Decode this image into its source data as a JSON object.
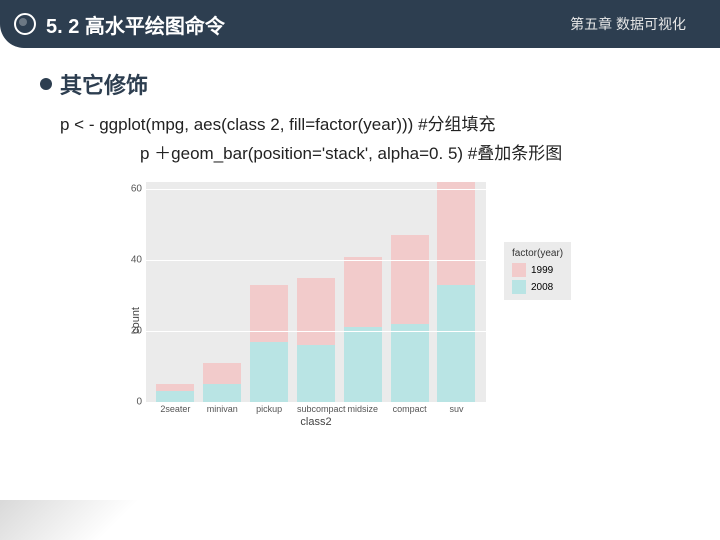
{
  "header": {
    "section": "5. 2 高水平绘图命令",
    "chapter": "第五章 数据可视化"
  },
  "bullet": "其它修饰",
  "code": {
    "line1": "p < - ggplot(mpg, aes(class 2, fill=factor(year)))   #分组填充",
    "line2": "p ＋geom_bar(position='stack', alpha=0. 5)   #叠加条形图"
  },
  "chart": {
    "type": "bar",
    "stack": true,
    "alpha": 0.55,
    "panel_bg": "#ebebeb",
    "grid_color": "#ffffff",
    "ylabel": "count",
    "xlabel": "class2",
    "ylim": [
      0,
      62
    ],
    "yticks": [
      0,
      20,
      40,
      60
    ],
    "categories": [
      "2seater",
      "minivan",
      "pickup",
      "subcompact",
      "midsize",
      "compact",
      "suv"
    ],
    "series": [
      {
        "name": "1999",
        "color": "#f7b0b0",
        "values": [
          2,
          6,
          16,
          19,
          20,
          25,
          29
        ]
      },
      {
        "name": "2008",
        "color": "#8fdede",
        "values": [
          3,
          5,
          17,
          16,
          21,
          22,
          33
        ]
      }
    ],
    "legend": {
      "title": "factor(year)",
      "items": [
        {
          "label": "1999",
          "color": "#f7b0b0"
        },
        {
          "label": "2008",
          "color": "#8fdede"
        }
      ]
    }
  }
}
